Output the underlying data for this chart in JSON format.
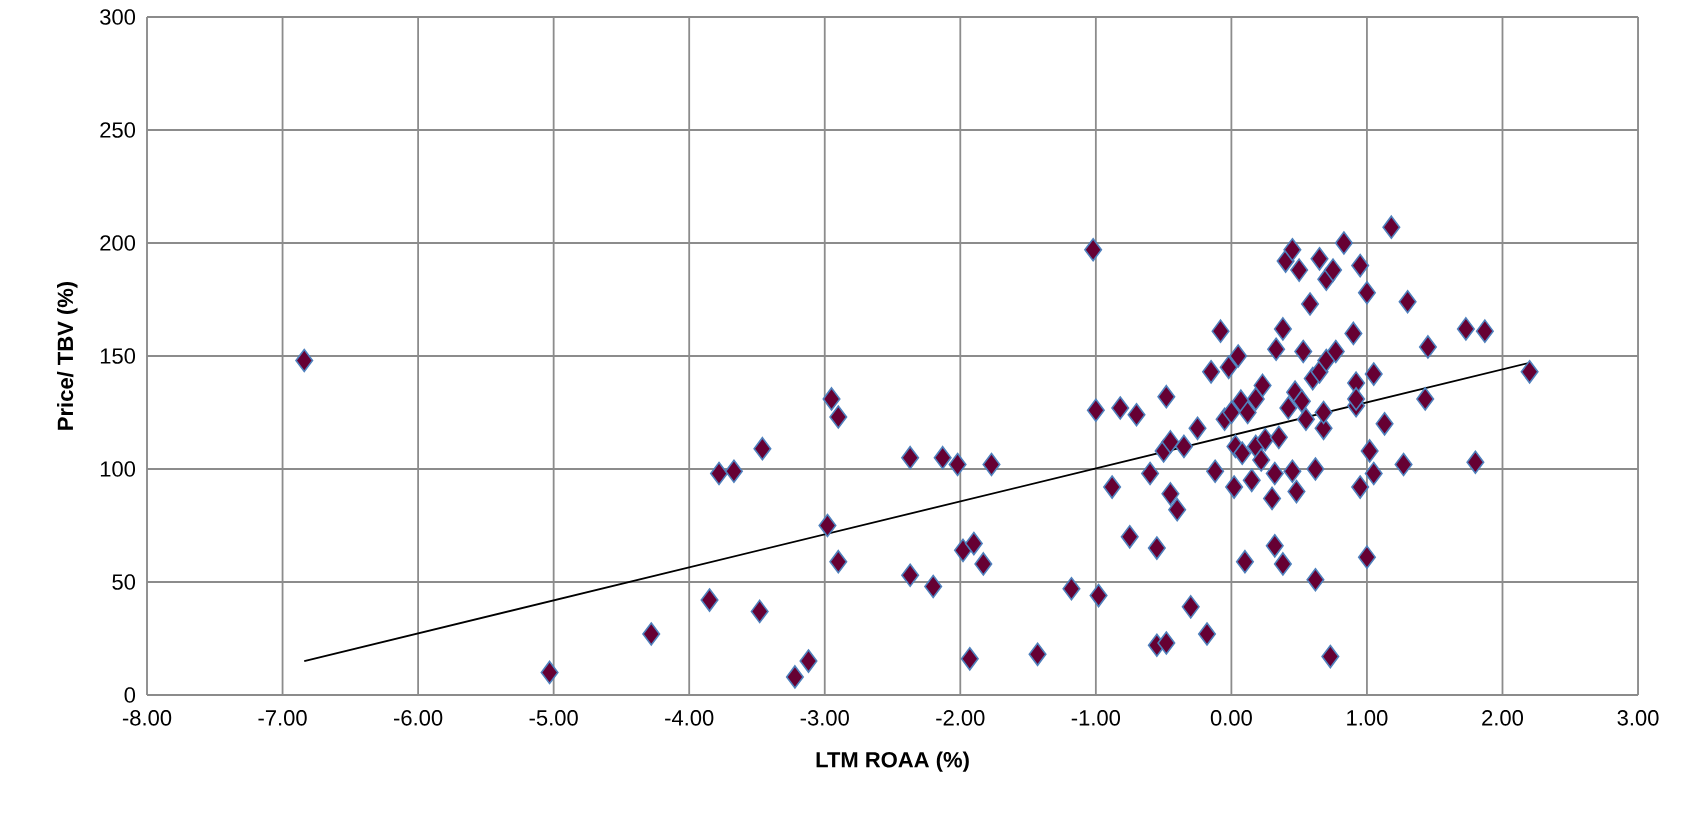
{
  "chart_data": {
    "type": "scatter",
    "xlabel": "LTM ROAA (%)",
    "ylabel": "Price/ TBV (%)",
    "xlim": [
      -8,
      3
    ],
    "ylim": [
      0,
      300
    ],
    "xticks": [
      {
        "value": -8,
        "label": "-8.00"
      },
      {
        "value": -7,
        "label": "-7.00"
      },
      {
        "value": -6,
        "label": "-6.00"
      },
      {
        "value": -5,
        "label": "-5.00"
      },
      {
        "value": -4,
        "label": "-4.00"
      },
      {
        "value": -3,
        "label": "-3.00"
      },
      {
        "value": -2,
        "label": "-2.00"
      },
      {
        "value": -1,
        "label": "-1.00"
      },
      {
        "value": 0,
        "label": "0.00"
      },
      {
        "value": 1,
        "label": "1.00"
      },
      {
        "value": 2,
        "label": "2.00"
      },
      {
        "value": 3,
        "label": "3.00"
      }
    ],
    "yticks": [
      0,
      50,
      100,
      150,
      200,
      250,
      300
    ],
    "grid": true,
    "marker": "diamond",
    "series": [
      {
        "color": "#660033",
        "x": [
          -6.84,
          -5.03,
          -4.28,
          -3.85,
          -3.78,
          -3.67,
          -3.48,
          -3.46,
          -3.22,
          -3.12,
          -2.98,
          -2.95,
          -2.9,
          -2.9,
          -2.37,
          -2.37,
          -2.2,
          -2.13,
          -2.02,
          -1.98,
          -1.93,
          -1.9,
          -1.83,
          -1.77,
          -1.43,
          -1.18,
          -1.02,
          -1.0,
          -0.98,
          -0.88,
          -0.82,
          -0.75,
          -0.7,
          -0.6,
          -0.55,
          -0.55,
          -0.5,
          -0.48,
          -0.48,
          -0.45,
          -0.45,
          -0.4,
          -0.35,
          -0.3,
          -0.25,
          -0.18,
          -0.15,
          -0.12,
          -0.08,
          -0.05,
          -0.02,
          0.0,
          0.02,
          0.03,
          0.05,
          0.07,
          0.08,
          0.1,
          0.12,
          0.15,
          0.18,
          0.18,
          0.22,
          0.23,
          0.25,
          0.3,
          0.32,
          0.32,
          0.33,
          0.35,
          0.38,
          0.38,
          0.4,
          0.42,
          0.45,
          0.45,
          0.47,
          0.48,
          0.5,
          0.52,
          0.53,
          0.55,
          0.58,
          0.6,
          0.62,
          0.62,
          0.65,
          0.65,
          0.68,
          0.68,
          0.7,
          0.7,
          0.73,
          0.75,
          0.77,
          0.83,
          0.9,
          0.92,
          0.92,
          0.92,
          0.95,
          0.95,
          1.0,
          1.0,
          1.02,
          1.05,
          1.05,
          1.13,
          1.18,
          1.27,
          1.3,
          1.43,
          1.45,
          1.73,
          1.8,
          1.87,
          2.2
        ],
        "values": [
          148,
          10,
          27,
          42,
          98,
          99,
          37,
          109,
          8,
          15,
          75,
          131,
          123,
          59,
          53,
          105,
          48,
          105,
          102,
          64,
          16,
          67,
          58,
          102,
          18,
          47,
          197,
          126,
          44,
          92,
          127,
          70,
          124,
          98,
          22,
          65,
          108,
          132,
          23,
          112,
          89,
          82,
          110,
          39,
          118,
          27,
          143,
          99,
          161,
          122,
          145,
          125,
          92,
          110,
          150,
          130,
          107,
          59,
          125,
          95,
          110,
          131,
          104,
          137,
          113,
          87,
          98,
          66,
          153,
          114,
          162,
          58,
          192,
          127,
          197,
          99,
          134,
          90,
          188,
          130,
          152,
          122,
          173,
          140,
          100,
          51,
          193,
          143,
          118,
          125,
          184,
          148,
          17,
          188,
          152,
          200,
          160,
          138,
          128,
          131,
          190,
          92,
          61,
          178,
          108,
          142,
          98,
          120,
          207,
          102,
          174,
          131,
          154,
          162,
          103,
          161,
          143
        ]
      },
      {
        "type": "line",
        "color": "#000000",
        "marker": "none",
        "x": [
          -6.84,
          2.2
        ],
        "values": [
          15,
          147
        ]
      }
    ]
  }
}
